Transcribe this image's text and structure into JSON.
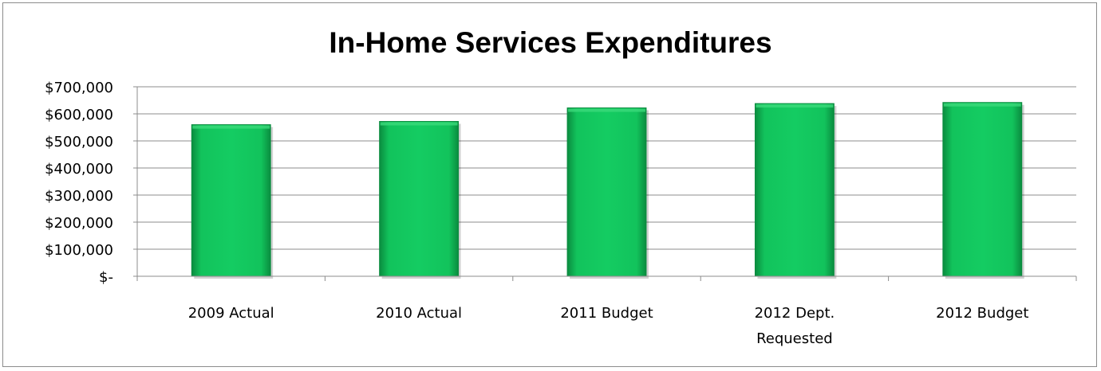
{
  "chart_data": {
    "type": "bar",
    "title": "In-Home Services Expenditures",
    "xlabel": "",
    "ylabel": "",
    "categories": [
      "2009 Actual",
      "2010 Actual",
      "2011 Budget",
      "2012 Dept. Requested",
      "2012 Budget"
    ],
    "category_lines": [
      [
        "2009 Actual"
      ],
      [
        "2010 Actual"
      ],
      [
        "2011 Budget"
      ],
      [
        "2012 Dept.",
        "Requested"
      ],
      [
        "2012 Budget"
      ]
    ],
    "values": [
      560000,
      572000,
      622000,
      638000,
      642000
    ],
    "ylim": [
      0,
      700000
    ],
    "yticks": [
      0,
      100000,
      200000,
      300000,
      400000,
      500000,
      600000,
      700000
    ],
    "ytick_labels": [
      "$-",
      "$100,000",
      "$200,000",
      "$300,000",
      "$400,000",
      "$500,000",
      "$600,000",
      "$700,000"
    ],
    "grid": true,
    "legend": "none",
    "colors": {
      "bar": "#12c35c",
      "bar_dark": "#0a8c3f",
      "bar_light": "#3bd97a",
      "grid": "#8c8c8c",
      "axis": "#8c8c8c"
    }
  }
}
